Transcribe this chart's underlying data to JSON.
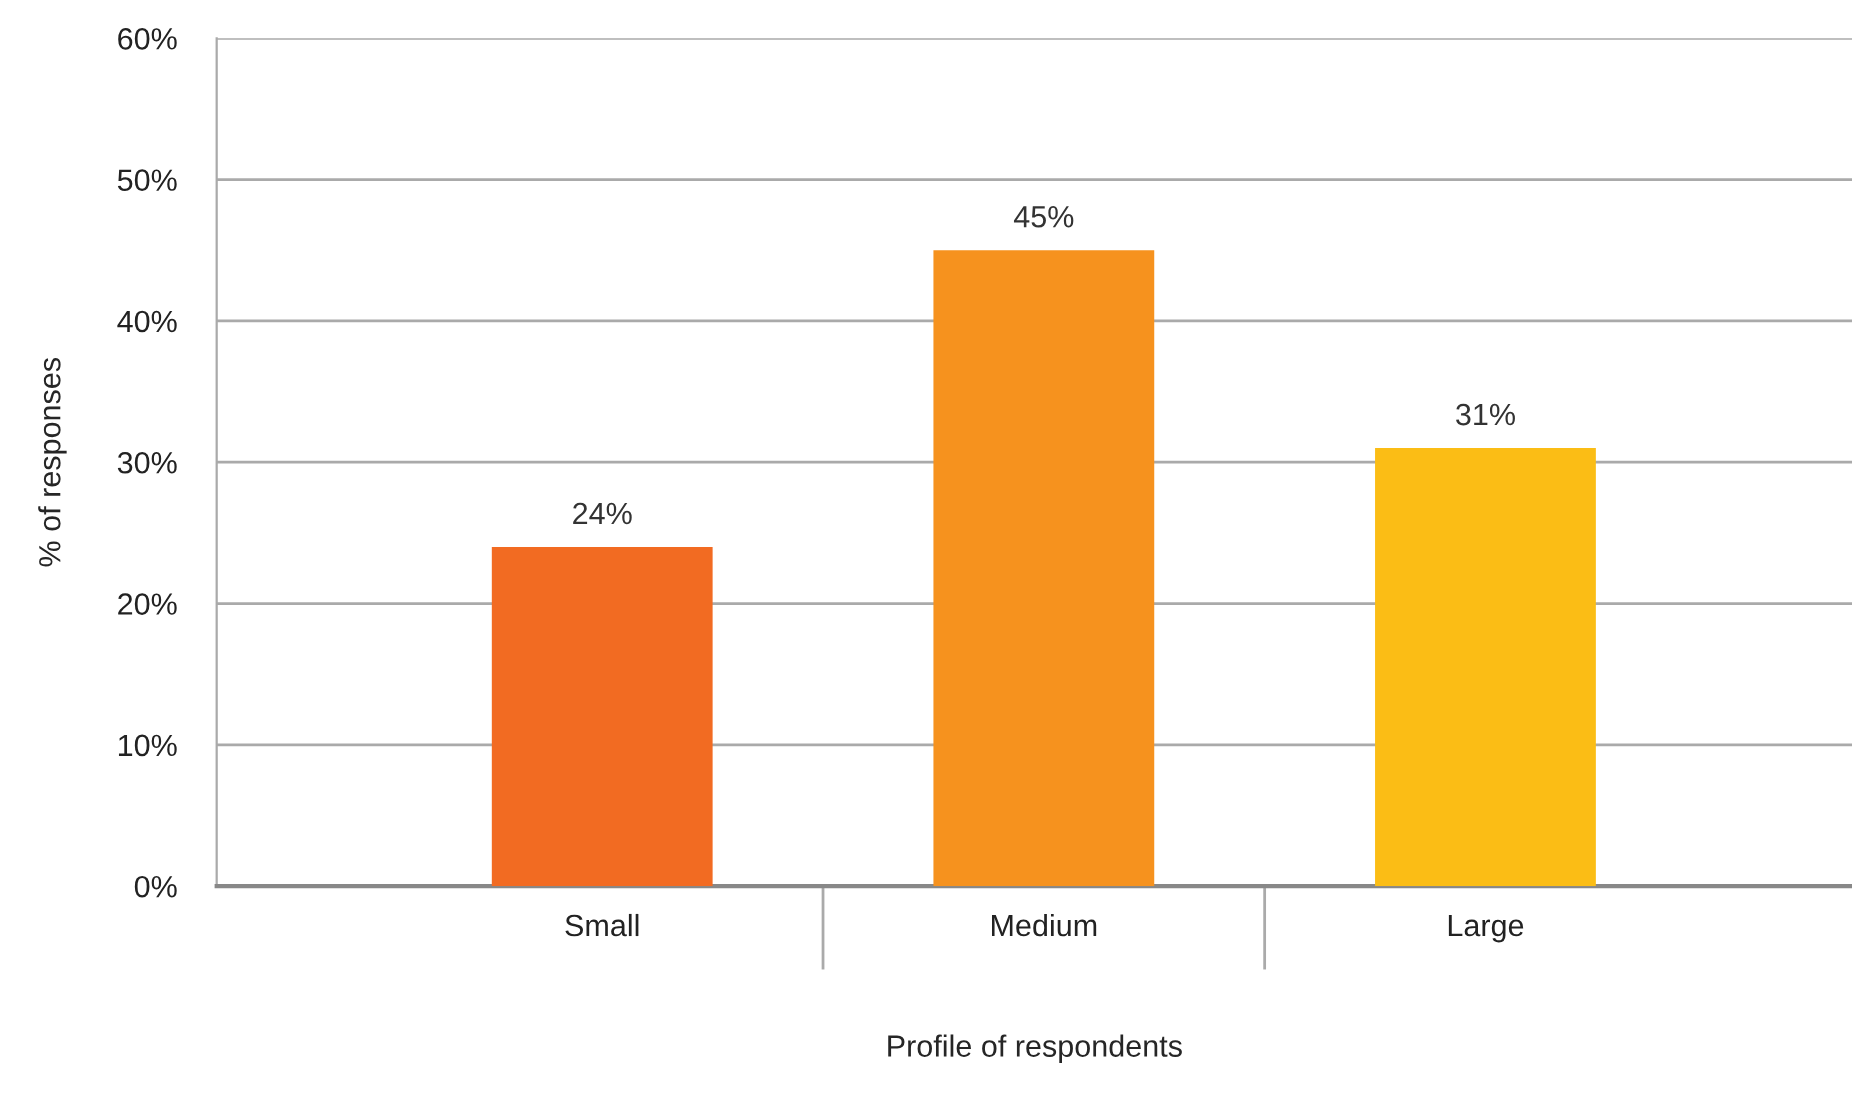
{
  "chart_data": {
    "type": "bar",
    "xlabel": "Profile of respondents",
    "ylabel": "% of responses",
    "categories": [
      "Small",
      "Medium",
      "Large"
    ],
    "values": [
      24,
      45,
      31
    ],
    "colors": [
      "#f26b22",
      "#f6921e",
      "#fbbd15"
    ],
    "value_labels": [
      "24%",
      "45%",
      "31%"
    ],
    "ylim": [
      0,
      60
    ],
    "yticks": [
      {
        "value": 0,
        "label": "0%"
      },
      {
        "value": 10,
        "label": "10%"
      },
      {
        "value": 20,
        "label": "20%"
      },
      {
        "value": 30,
        "label": "30%"
      },
      {
        "value": 40,
        "label": "40%"
      },
      {
        "value": 50,
        "label": "50%"
      },
      {
        "value": 60,
        "label": "60%"
      }
    ],
    "grid": "y",
    "legend": false
  }
}
